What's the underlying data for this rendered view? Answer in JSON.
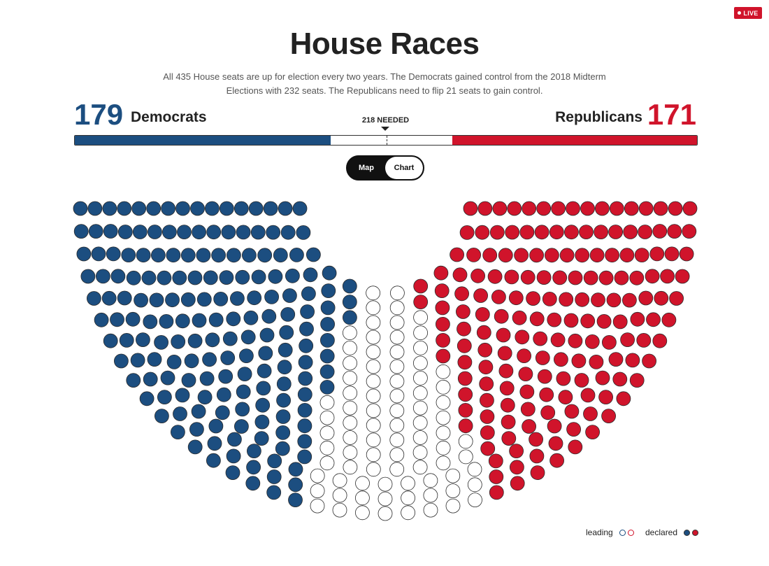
{
  "badge": {
    "live_label": "LIVE"
  },
  "header": {
    "title": "House Races",
    "subtitle": "All 435 House seats are up for election every two years. The Democrats gained control from the 2018 Midterm Elections with 232 seats. The Republicans need to flip 21 seats to gain control."
  },
  "tally": {
    "dem_count": "179",
    "dem_label": "Democrats",
    "rep_count": "171",
    "rep_label": "Republicans",
    "needed_label": "218 NEEDED",
    "total_seats": 435,
    "dem_seats": 179,
    "rep_seats": 171,
    "majority": 218
  },
  "view_toggle": {
    "map_label": "Map",
    "chart_label": "Chart",
    "selected": "Map"
  },
  "seat_chart": {
    "rows": 16,
    "dem_color": "#1c4e80",
    "rep_color": "#d0142b",
    "undecided_color": "#ffffff"
  },
  "legend": {
    "leading_label": "leading",
    "declared_label": "declared"
  },
  "colors": {
    "dem": "#1c4e80",
    "rep": "#d0142b",
    "accent": "#d0142b"
  }
}
